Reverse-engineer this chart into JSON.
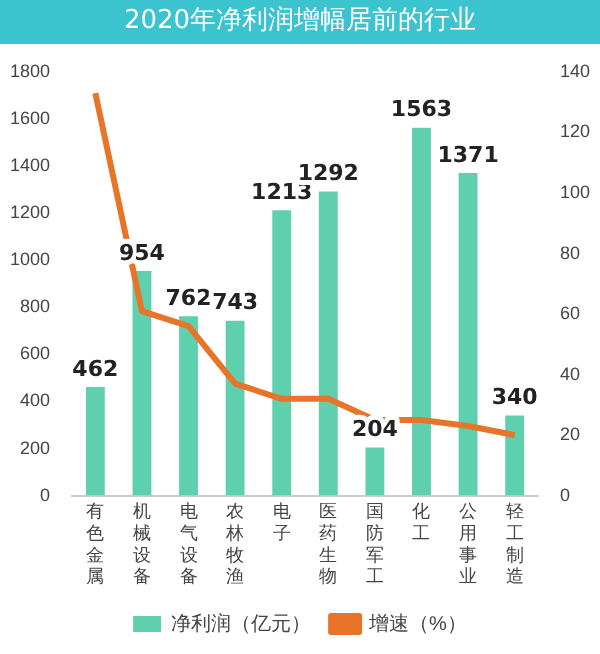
{
  "chart_data": {
    "type": "bar",
    "title": "2020年净利润增幅居前的行业",
    "categories": [
      "有色金属",
      "机械设备",
      "电气设备",
      "农林牧渔",
      "电子",
      "医药生物",
      "国防军工",
      "化工",
      "公用事业",
      "轻工制造"
    ],
    "series": [
      {
        "name": "净利润（亿元）",
        "color": "#5fd0ae",
        "values": [
          462,
          954,
          762,
          743,
          1213,
          1292,
          204,
          1563,
          1371,
          340
        ],
        "value_labels": [
          "462",
          "954",
          "762",
          "743",
          "1213",
          "1292",
          "204",
          "1563",
          "1371",
          "340"
        ]
      },
      {
        "name": "增速（%）",
        "type": "line",
        "axis": "y2",
        "color": "#e8742a",
        "values": [
          133,
          61,
          56,
          37,
          32,
          32,
          25,
          25,
          23,
          20
        ]
      }
    ],
    "ylim": [
      0,
      1800
    ],
    "yticks": [
      0,
      200,
      400,
      600,
      800,
      1000,
      1200,
      1400,
      1600,
      1800
    ],
    "y2lim": [
      0,
      140
    ],
    "y2ticks": [
      0,
      20,
      40,
      60,
      80,
      100,
      120,
      140
    ],
    "grid": false,
    "legend": "bottom",
    "marker": "none",
    "line_style": "solid"
  }
}
